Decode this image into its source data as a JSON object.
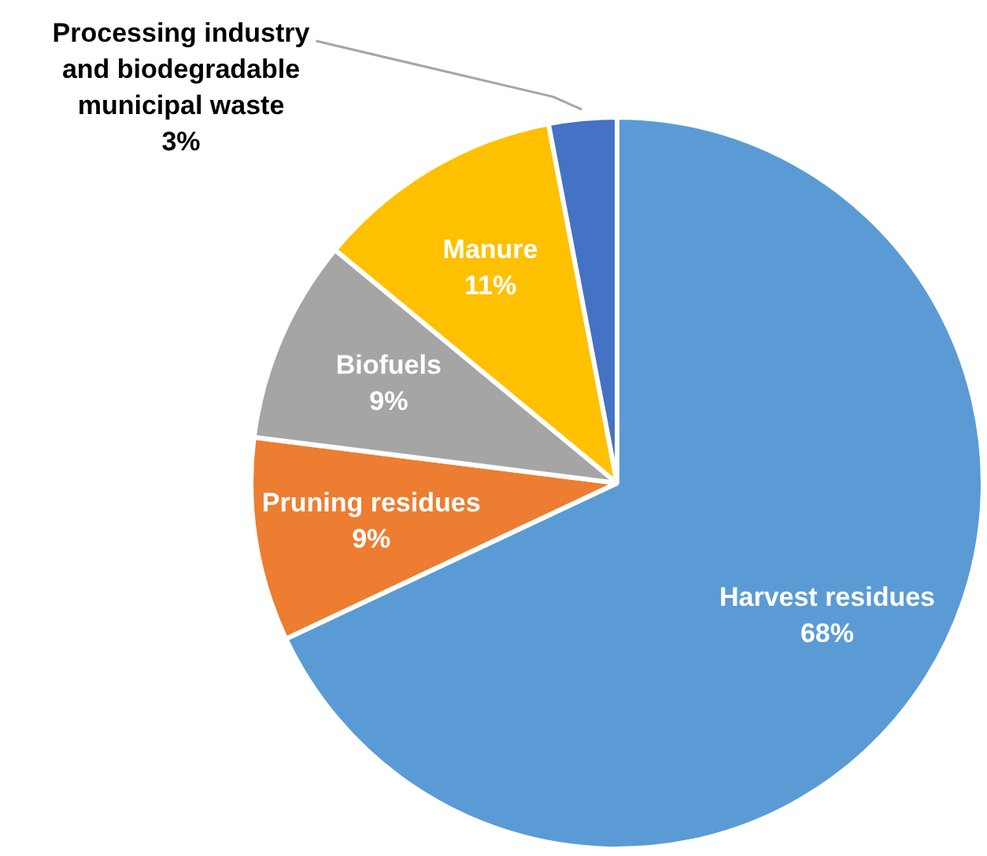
{
  "chart_data": {
    "type": "pie",
    "categories": [
      "Harvest residues",
      "Pruning residues",
      "Biofuels",
      "Manure",
      "Processing industry and biodegradable municipal waste"
    ],
    "values": [
      68,
      9,
      9,
      11,
      3
    ],
    "colors": [
      "#5b9bd5",
      "#ed7d31",
      "#a5a5a5",
      "#ffc000",
      "#4472c4"
    ],
    "value_labels": [
      "68%",
      "9%",
      "9%",
      "11%",
      "3%"
    ]
  }
}
